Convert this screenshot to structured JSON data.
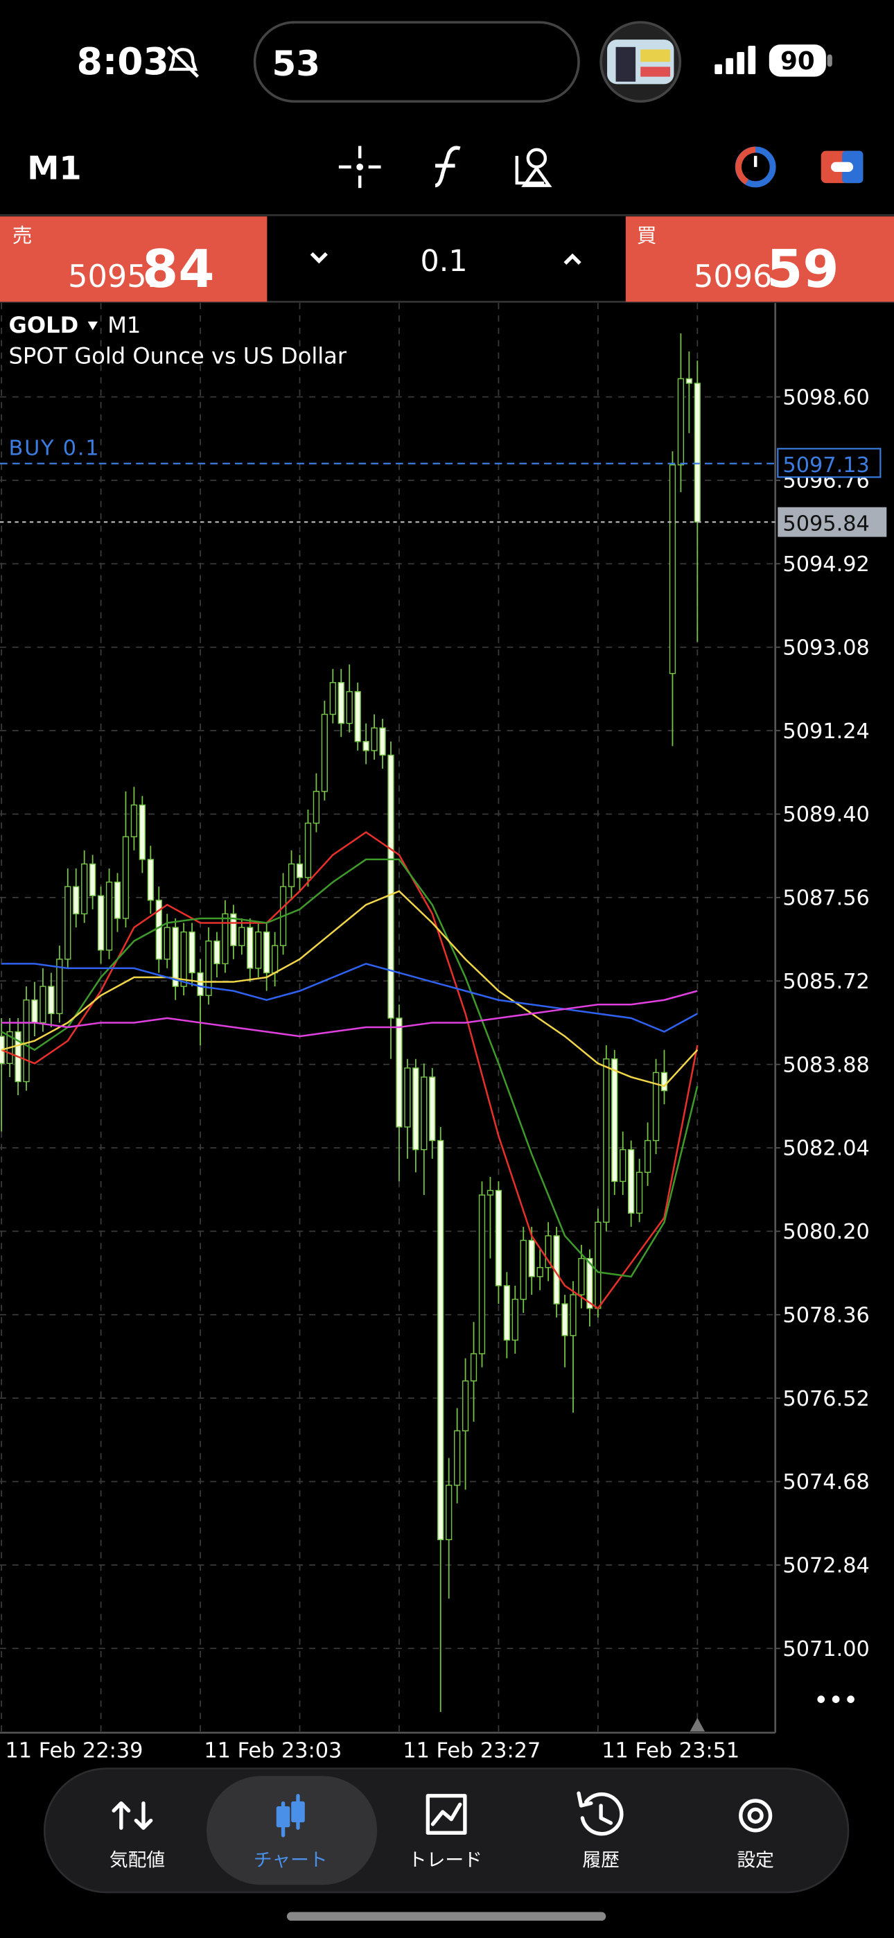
{
  "status_bar": {
    "time": "8:03",
    "activity": "53",
    "battery": "90"
  },
  "toolbar": {
    "timeframe": "M1"
  },
  "trade_panel": {
    "sell": {
      "label": "売",
      "price_main": "5095.",
      "price_big": "84"
    },
    "volume": "0.1",
    "buy": {
      "label": "買",
      "price_main": "5096.",
      "price_big": "59"
    }
  },
  "chart_data": {
    "type": "candlestick",
    "title": "GOLD",
    "timeframe": "M1",
    "subtitle": "SPOT Gold Ounce vs US Dollar",
    "categories": [
      "11 Feb 22:39",
      null,
      null,
      null,
      null,
      null,
      null,
      null,
      null,
      null,
      null,
      null,
      null,
      null,
      null,
      null,
      null,
      null,
      null,
      null,
      null,
      null,
      null,
      null,
      "11 Feb 23:03",
      null,
      null,
      null,
      null,
      null,
      null,
      null,
      null,
      null,
      null,
      null,
      null,
      null,
      null,
      null,
      null,
      null,
      null,
      null,
      null,
      null,
      null,
      null,
      "11 Feb 23:27",
      null,
      null,
      null,
      null,
      null,
      null,
      null,
      null,
      null,
      null,
      null,
      null,
      null,
      null,
      null,
      null,
      null,
      null,
      null,
      null,
      null,
      null,
      null,
      "11 Feb 23:51",
      null,
      null,
      null,
      null,
      null,
      null,
      null,
      null,
      null,
      null,
      null,
      null
    ],
    "ohlc": [
      [
        5084.5,
        5084.9,
        5082.4,
        5083.9
      ],
      [
        5083.9,
        5084.9,
        5083.6,
        5084.6
      ],
      [
        5084.6,
        5084.9,
        5083.2,
        5083.5
      ],
      [
        5083.5,
        5085.6,
        5083.3,
        5085.3
      ],
      [
        5085.3,
        5085.7,
        5084.5,
        5084.8
      ],
      [
        5084.8,
        5086.0,
        5084.6,
        5085.6
      ],
      [
        5085.6,
        5085.9,
        5084.7,
        5085.0
      ],
      [
        5085.0,
        5086.5,
        5084.8,
        5086.2
      ],
      [
        5086.2,
        5088.2,
        5086.0,
        5087.8
      ],
      [
        5087.8,
        5088.2,
        5086.9,
        5087.2
      ],
      [
        5087.2,
        5088.6,
        5087.0,
        5088.3
      ],
      [
        5088.3,
        5088.5,
        5087.3,
        5087.6
      ],
      [
        5087.6,
        5087.8,
        5086.1,
        5086.4
      ],
      [
        5086.4,
        5088.2,
        5086.2,
        5087.9
      ],
      [
        5087.9,
        5088.1,
        5086.8,
        5087.1
      ],
      [
        5087.1,
        5089.9,
        5086.9,
        5088.9
      ],
      [
        5088.9,
        5090.0,
        5088.6,
        5089.6
      ],
      [
        5089.6,
        5089.8,
        5088.1,
        5088.4
      ],
      [
        5088.4,
        5088.7,
        5087.2,
        5087.5
      ],
      [
        5087.5,
        5087.8,
        5085.9,
        5086.2
      ],
      [
        5086.2,
        5087.2,
        5086.0,
        5086.9
      ],
      [
        5086.9,
        5087.1,
        5085.3,
        5085.6
      ],
      [
        5085.6,
        5087.0,
        5085.4,
        5086.8
      ],
      [
        5086.8,
        5087.0,
        5085.6,
        5085.9
      ],
      [
        5085.9,
        5086.2,
        5084.3,
        5085.4
      ],
      [
        5085.4,
        5086.9,
        5085.2,
        5086.6
      ],
      [
        5086.6,
        5086.8,
        5085.8,
        5086.1
      ],
      [
        5086.1,
        5087.5,
        5085.9,
        5087.2
      ],
      [
        5087.2,
        5087.4,
        5086.2,
        5086.5
      ],
      [
        5086.5,
        5087.1,
        5086.3,
        5086.9
      ],
      [
        5086.9,
        5087.1,
        5085.7,
        5086.0
      ],
      [
        5086.0,
        5087.0,
        5085.8,
        5086.8
      ],
      [
        5086.8,
        5087.0,
        5085.5,
        5085.9
      ],
      [
        5085.9,
        5086.8,
        5085.6,
        5086.5
      ],
      [
        5086.5,
        5088.1,
        5086.3,
        5087.8
      ],
      [
        5087.8,
        5088.6,
        5087.5,
        5088.3
      ],
      [
        5088.3,
        5088.5,
        5087.7,
        5088.0
      ],
      [
        5088.0,
        5089.5,
        5087.8,
        5089.2
      ],
      [
        5089.2,
        5090.3,
        5089.0,
        5089.9
      ],
      [
        5089.9,
        5091.9,
        5089.7,
        5091.6
      ],
      [
        5091.6,
        5092.6,
        5091.4,
        5092.3
      ],
      [
        5092.3,
        5092.6,
        5091.1,
        5091.4
      ],
      [
        5091.4,
        5092.7,
        5091.2,
        5092.1
      ],
      [
        5092.1,
        5092.3,
        5090.8,
        5091.0
      ],
      [
        5091.0,
        5091.4,
        5090.5,
        5090.8
      ],
      [
        5090.8,
        5091.6,
        5090.6,
        5091.3
      ],
      [
        5091.3,
        5091.5,
        5090.4,
        5090.7
      ],
      [
        5090.7,
        5091.0,
        5084.0,
        5084.9
      ],
      [
        5084.9,
        5085.2,
        5081.3,
        5082.5
      ],
      [
        5082.5,
        5084.0,
        5081.8,
        5083.8
      ],
      [
        5083.8,
        5084.0,
        5081.5,
        5082.0
      ],
      [
        5082.0,
        5083.9,
        5081.0,
        5083.6
      ],
      [
        5083.6,
        5083.8,
        5081.8,
        5082.2
      ],
      [
        5082.2,
        5082.5,
        5069.6,
        5073.4
      ],
      [
        5073.4,
        5075.2,
        5072.1,
        5074.6
      ],
      [
        5074.6,
        5076.3,
        5074.2,
        5075.8
      ],
      [
        5075.8,
        5077.4,
        5074.5,
        5076.9
      ],
      [
        5076.9,
        5078.2,
        5076.0,
        5077.5
      ],
      [
        5077.5,
        5081.3,
        5077.2,
        5081.0
      ],
      [
        5081.0,
        5081.4,
        5079.6,
        5081.1
      ],
      [
        5081.1,
        5081.3,
        5078.6,
        5079.0
      ],
      [
        5079.0,
        5079.3,
        5077.4,
        5077.8
      ],
      [
        5077.8,
        5079.0,
        5077.5,
        5078.7
      ],
      [
        5078.7,
        5080.3,
        5078.4,
        5080.0
      ],
      [
        5080.0,
        5080.3,
        5078.8,
        5079.2
      ],
      [
        5079.2,
        5079.8,
        5078.9,
        5079.4
      ],
      [
        5079.4,
        5080.4,
        5079.1,
        5080.1
      ],
      [
        5080.1,
        5080.3,
        5078.3,
        5078.6
      ],
      [
        5078.6,
        5078.8,
        5077.2,
        5077.9
      ],
      [
        5077.9,
        5079.1,
        5076.2,
        5078.8
      ],
      [
        5078.8,
        5079.9,
        5078.5,
        5079.6
      ],
      [
        5079.6,
        5079.8,
        5078.1,
        5078.5
      ],
      [
        5078.5,
        5080.7,
        5078.3,
        5080.4
      ],
      [
        5080.4,
        5084.3,
        5080.2,
        5084.0
      ],
      [
        5084.0,
        5084.2,
        5081.0,
        5081.3
      ],
      [
        5081.3,
        5082.4,
        5081.0,
        5082.0
      ],
      [
        5082.0,
        5082.2,
        5080.3,
        5080.6
      ],
      [
        5080.6,
        5081.8,
        5080.4,
        5081.5
      ],
      [
        5081.5,
        5082.6,
        5081.2,
        5082.2
      ],
      [
        5082.2,
        5084.0,
        5081.9,
        5083.7
      ],
      [
        5083.7,
        5084.2,
        5083.0,
        5083.3
      ],
      [
        5092.5,
        5097.4,
        5090.9,
        5097.1
      ],
      [
        5097.1,
        5100.0,
        5096.5,
        5099.0
      ],
      [
        5099.0,
        5099.6,
        5097.8,
        5098.9
      ],
      [
        5098.9,
        5099.4,
        5093.2,
        5095.84
      ]
    ],
    "bull_color": "#000000",
    "bear_color": "#f2ffe2",
    "wick_color": "#78c448",
    "series": [
      {
        "color": "#e8302a",
        "x": [
          0,
          4,
          8,
          12,
          16,
          20,
          24,
          28,
          32,
          36,
          40,
          44,
          48,
          52,
          56,
          60,
          64,
          68,
          72,
          76,
          80,
          84
        ],
        "values": [
          5084.2,
          5083.9,
          5084.4,
          5085.5,
          5086.9,
          5087.4,
          5087.0,
          5087.0,
          5087.0,
          5087.7,
          5088.5,
          5089.0,
          5088.5,
          5087.2,
          5085.0,
          5082.3,
          5080.1,
          5079.0,
          5078.5,
          5079.5,
          5080.5,
          5084.3
        ]
      },
      {
        "color": "#3e9a2a",
        "x": [
          0,
          4,
          8,
          12,
          16,
          20,
          24,
          28,
          32,
          36,
          40,
          44,
          48,
          52,
          56,
          60,
          64,
          68,
          72,
          76,
          80,
          84
        ],
        "values": [
          5084.6,
          5084.2,
          5084.7,
          5085.8,
          5086.6,
          5087.0,
          5087.1,
          5087.1,
          5087.0,
          5087.3,
          5087.9,
          5088.4,
          5088.4,
          5087.4,
          5085.8,
          5083.9,
          5081.9,
          5080.1,
          5079.3,
          5079.2,
          5080.4,
          5083.4
        ]
      },
      {
        "color": "#f2d64a",
        "x": [
          0,
          4,
          8,
          12,
          16,
          20,
          24,
          28,
          32,
          36,
          40,
          44,
          48,
          52,
          56,
          60,
          64,
          68,
          72,
          76,
          80,
          84
        ],
        "values": [
          5084.2,
          5084.4,
          5084.8,
          5085.4,
          5085.8,
          5085.8,
          5085.7,
          5085.7,
          5085.8,
          5086.2,
          5086.8,
          5087.4,
          5087.7,
          5087.0,
          5086.2,
          5085.5,
          5085.0,
          5084.5,
          5083.9,
          5083.6,
          5083.4,
          5084.2
        ]
      },
      {
        "color": "#2f62f0",
        "x": [
          0,
          4,
          8,
          12,
          16,
          20,
          24,
          28,
          32,
          36,
          40,
          44,
          48,
          52,
          56,
          60,
          64,
          68,
          72,
          76,
          80,
          84
        ],
        "values": [
          5086.1,
          5086.1,
          5086.0,
          5086.0,
          5086.0,
          5085.8,
          5085.6,
          5085.5,
          5085.3,
          5085.5,
          5085.8,
          5086.1,
          5085.9,
          5085.7,
          5085.5,
          5085.3,
          5085.2,
          5085.1,
          5085.0,
          5084.9,
          5084.6,
          5085.0
        ]
      },
      {
        "color": "#e040e0",
        "x": [
          0,
          4,
          8,
          12,
          16,
          20,
          24,
          28,
          32,
          36,
          40,
          44,
          48,
          52,
          56,
          60,
          64,
          68,
          72,
          76,
          80,
          84
        ],
        "values": [
          5084.8,
          5084.8,
          5084.7,
          5084.8,
          5084.8,
          5084.9,
          5084.8,
          5084.7,
          5084.6,
          5084.5,
          5084.6,
          5084.7,
          5084.7,
          5084.8,
          5084.8,
          5084.9,
          5085.0,
          5085.1,
          5085.2,
          5085.2,
          5085.3,
          5085.5
        ]
      }
    ],
    "ylim": [
      5069.17,
      5100.67
    ],
    "yticks": [
      {
        "value": 5071,
        "label": "5071.00"
      },
      5072.84,
      5074.68,
      5076.52,
      5078.36,
      {
        "value": 5080.2,
        "label": "5080.20"
      },
      5082.04,
      5083.88,
      5085.72,
      5087.56,
      {
        "value": 5089.4,
        "label": "5089.40"
      },
      5091.24,
      5093.08,
      5094.92,
      5096.76,
      {
        "value": 5098.6,
        "label": "5098.60"
      }
    ],
    "grid": true,
    "order_line": {
      "label": "BUY 0.1",
      "value": 5097.13,
      "color": "#3b7de0"
    },
    "bid_line": {
      "value": 5095.84
    }
  },
  "nav": {
    "items": [
      "気配値",
      "チャート",
      "トレード",
      "履歴",
      "設定"
    ],
    "active": 1
  }
}
